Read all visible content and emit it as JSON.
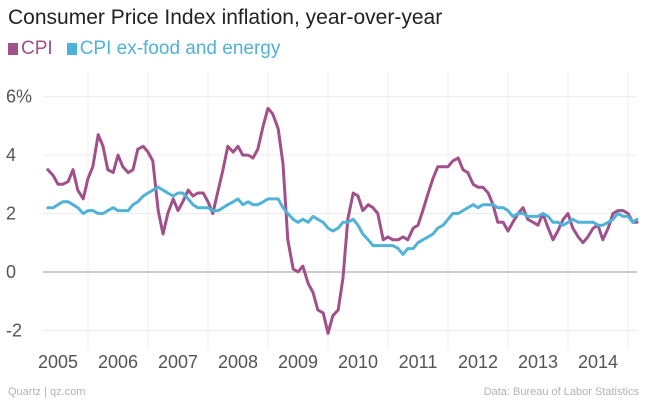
{
  "chart_data": {
    "type": "line",
    "title": "Consumer Price Index inflation, year-over-year",
    "xlabel": "",
    "ylabel": "",
    "x_range": [
      2004.75,
      2014.65
    ],
    "ylim": [
      -2.5,
      6.5
    ],
    "y_ticks": [
      "6%",
      "4",
      "2",
      "0",
      "-2"
    ],
    "y_tick_values": [
      6,
      4,
      2,
      0,
      -2
    ],
    "x_ticks": [
      "2005",
      "2006",
      "2007",
      "2008",
      "2009",
      "2010",
      "2011",
      "2012",
      "2013",
      "2014"
    ],
    "x_tick_values": [
      2005,
      2006,
      2007,
      2008,
      2009,
      2010,
      2011,
      2012,
      2013,
      2014
    ],
    "legend": "top-left",
    "grid": true,
    "series": [
      {
        "name": "CPI",
        "color": "#a0508a",
        "points": [
          [
            2004.83,
            3.5
          ],
          [
            2004.92,
            3.3
          ],
          [
            2005.0,
            3.0
          ],
          [
            2005.08,
            3.0
          ],
          [
            2005.17,
            3.1
          ],
          [
            2005.25,
            3.5
          ],
          [
            2005.33,
            2.8
          ],
          [
            2005.42,
            2.5
          ],
          [
            2005.5,
            3.2
          ],
          [
            2005.58,
            3.6
          ],
          [
            2005.67,
            4.7
          ],
          [
            2005.75,
            4.3
          ],
          [
            2005.83,
            3.5
          ],
          [
            2005.92,
            3.4
          ],
          [
            2006.0,
            4.0
          ],
          [
            2006.08,
            3.6
          ],
          [
            2006.17,
            3.4
          ],
          [
            2006.25,
            3.5
          ],
          [
            2006.33,
            4.2
          ],
          [
            2006.42,
            4.3
          ],
          [
            2006.5,
            4.1
          ],
          [
            2006.58,
            3.8
          ],
          [
            2006.67,
            2.1
          ],
          [
            2006.75,
            1.3
          ],
          [
            2006.83,
            2.0
          ],
          [
            2006.92,
            2.5
          ],
          [
            2007.0,
            2.1
          ],
          [
            2007.08,
            2.4
          ],
          [
            2007.17,
            2.8
          ],
          [
            2007.25,
            2.6
          ],
          [
            2007.33,
            2.7
          ],
          [
            2007.42,
            2.7
          ],
          [
            2007.5,
            2.4
          ],
          [
            2007.58,
            2.0
          ],
          [
            2007.67,
            2.8
          ],
          [
            2007.75,
            3.5
          ],
          [
            2007.83,
            4.3
          ],
          [
            2007.92,
            4.1
          ],
          [
            2008.0,
            4.3
          ],
          [
            2008.08,
            4.0
          ],
          [
            2008.17,
            4.0
          ],
          [
            2008.25,
            3.9
          ],
          [
            2008.33,
            4.2
          ],
          [
            2008.42,
            5.0
          ],
          [
            2008.5,
            5.6
          ],
          [
            2008.58,
            5.4
          ],
          [
            2008.67,
            4.9
          ],
          [
            2008.75,
            3.7
          ],
          [
            2008.83,
            1.1
          ],
          [
            2008.92,
            0.1
          ],
          [
            2009.0,
            0.0
          ],
          [
            2009.08,
            0.2
          ],
          [
            2009.17,
            -0.4
          ],
          [
            2009.25,
            -0.7
          ],
          [
            2009.33,
            -1.3
          ],
          [
            2009.42,
            -1.4
          ],
          [
            2009.5,
            -2.1
          ],
          [
            2009.58,
            -1.5
          ],
          [
            2009.67,
            -1.3
          ],
          [
            2009.75,
            -0.2
          ],
          [
            2009.83,
            1.8
          ],
          [
            2009.92,
            2.7
          ],
          [
            2010.0,
            2.6
          ],
          [
            2010.08,
            2.1
          ],
          [
            2010.17,
            2.3
          ],
          [
            2010.25,
            2.2
          ],
          [
            2010.33,
            2.0
          ],
          [
            2010.42,
            1.1
          ],
          [
            2010.5,
            1.2
          ],
          [
            2010.58,
            1.1
          ],
          [
            2010.67,
            1.1
          ],
          [
            2010.75,
            1.2
          ],
          [
            2010.83,
            1.1
          ],
          [
            2010.92,
            1.5
          ],
          [
            2011.0,
            1.6
          ],
          [
            2011.08,
            2.1
          ],
          [
            2011.17,
            2.7
          ],
          [
            2011.25,
            3.2
          ],
          [
            2011.33,
            3.6
          ],
          [
            2011.42,
            3.6
          ],
          [
            2011.5,
            3.6
          ],
          [
            2011.58,
            3.8
          ],
          [
            2011.67,
            3.9
          ],
          [
            2011.75,
            3.5
          ],
          [
            2011.83,
            3.4
          ],
          [
            2011.92,
            3.0
          ],
          [
            2012.0,
            2.9
          ],
          [
            2012.08,
            2.9
          ],
          [
            2012.17,
            2.7
          ],
          [
            2012.25,
            2.3
          ],
          [
            2012.33,
            1.7
          ],
          [
            2012.42,
            1.7
          ],
          [
            2012.5,
            1.4
          ],
          [
            2012.58,
            1.7
          ],
          [
            2012.67,
            2.0
          ],
          [
            2012.75,
            2.2
          ],
          [
            2012.83,
            1.8
          ],
          [
            2012.92,
            1.7
          ],
          [
            2013.0,
            1.6
          ],
          [
            2013.08,
            2.0
          ],
          [
            2013.17,
            1.5
          ],
          [
            2013.25,
            1.1
          ],
          [
            2013.33,
            1.4
          ],
          [
            2013.42,
            1.8
          ],
          [
            2013.5,
            2.0
          ],
          [
            2013.58,
            1.5
          ],
          [
            2013.67,
            1.2
          ],
          [
            2013.75,
            1.0
          ],
          [
            2013.83,
            1.2
          ],
          [
            2013.92,
            1.5
          ],
          [
            2014.0,
            1.6
          ],
          [
            2014.08,
            1.1
          ],
          [
            2014.17,
            1.5
          ],
          [
            2014.25,
            2.0
          ],
          [
            2014.33,
            2.1
          ],
          [
            2014.42,
            2.1
          ],
          [
            2014.5,
            2.0
          ],
          [
            2014.58,
            1.7
          ],
          [
            2014.65,
            1.7
          ]
        ]
      },
      {
        "name": "CPI ex-food and energy",
        "color": "#51b2d8",
        "points": [
          [
            2004.83,
            2.2
          ],
          [
            2004.92,
            2.2
          ],
          [
            2005.0,
            2.3
          ],
          [
            2005.08,
            2.4
          ],
          [
            2005.17,
            2.4
          ],
          [
            2005.25,
            2.3
          ],
          [
            2005.33,
            2.2
          ],
          [
            2005.42,
            2.0
          ],
          [
            2005.5,
            2.1
          ],
          [
            2005.58,
            2.1
          ],
          [
            2005.67,
            2.0
          ],
          [
            2005.75,
            2.0
          ],
          [
            2005.83,
            2.1
          ],
          [
            2005.92,
            2.2
          ],
          [
            2006.0,
            2.1
          ],
          [
            2006.08,
            2.1
          ],
          [
            2006.17,
            2.1
          ],
          [
            2006.25,
            2.3
          ],
          [
            2006.33,
            2.4
          ],
          [
            2006.42,
            2.6
          ],
          [
            2006.5,
            2.7
          ],
          [
            2006.58,
            2.8
          ],
          [
            2006.67,
            2.9
          ],
          [
            2006.75,
            2.8
          ],
          [
            2006.83,
            2.7
          ],
          [
            2006.92,
            2.6
          ],
          [
            2007.0,
            2.7
          ],
          [
            2007.08,
            2.7
          ],
          [
            2007.17,
            2.5
          ],
          [
            2007.25,
            2.3
          ],
          [
            2007.33,
            2.2
          ],
          [
            2007.42,
            2.2
          ],
          [
            2007.5,
            2.2
          ],
          [
            2007.58,
            2.1
          ],
          [
            2007.67,
            2.1
          ],
          [
            2007.75,
            2.2
          ],
          [
            2007.83,
            2.3
          ],
          [
            2007.92,
            2.4
          ],
          [
            2008.0,
            2.5
          ],
          [
            2008.08,
            2.3
          ],
          [
            2008.17,
            2.4
          ],
          [
            2008.25,
            2.3
          ],
          [
            2008.33,
            2.3
          ],
          [
            2008.42,
            2.4
          ],
          [
            2008.5,
            2.5
          ],
          [
            2008.58,
            2.5
          ],
          [
            2008.67,
            2.5
          ],
          [
            2008.75,
            2.2
          ],
          [
            2008.83,
            2.0
          ],
          [
            2008.92,
            1.8
          ],
          [
            2009.0,
            1.7
          ],
          [
            2009.08,
            1.8
          ],
          [
            2009.17,
            1.7
          ],
          [
            2009.25,
            1.9
          ],
          [
            2009.33,
            1.8
          ],
          [
            2009.42,
            1.7
          ],
          [
            2009.5,
            1.5
          ],
          [
            2009.58,
            1.4
          ],
          [
            2009.67,
            1.5
          ],
          [
            2009.75,
            1.7
          ],
          [
            2009.83,
            1.7
          ],
          [
            2009.92,
            1.8
          ],
          [
            2010.0,
            1.6
          ],
          [
            2010.08,
            1.3
          ],
          [
            2010.17,
            1.1
          ],
          [
            2010.25,
            0.9
          ],
          [
            2010.33,
            0.9
          ],
          [
            2010.42,
            0.9
          ],
          [
            2010.5,
            0.9
          ],
          [
            2010.58,
            0.9
          ],
          [
            2010.67,
            0.8
          ],
          [
            2010.75,
            0.6
          ],
          [
            2010.83,
            0.8
          ],
          [
            2010.92,
            0.8
          ],
          [
            2011.0,
            1.0
          ],
          [
            2011.08,
            1.1
          ],
          [
            2011.17,
            1.2
          ],
          [
            2011.25,
            1.3
          ],
          [
            2011.33,
            1.5
          ],
          [
            2011.42,
            1.6
          ],
          [
            2011.5,
            1.8
          ],
          [
            2011.58,
            2.0
          ],
          [
            2011.67,
            2.0
          ],
          [
            2011.75,
            2.1
          ],
          [
            2011.83,
            2.2
          ],
          [
            2011.92,
            2.3
          ],
          [
            2012.0,
            2.2
          ],
          [
            2012.08,
            2.3
          ],
          [
            2012.17,
            2.3
          ],
          [
            2012.25,
            2.3
          ],
          [
            2012.33,
            2.2
          ],
          [
            2012.42,
            2.2
          ],
          [
            2012.5,
            2.1
          ],
          [
            2012.58,
            1.9
          ],
          [
            2012.67,
            2.0
          ],
          [
            2012.75,
            2.0
          ],
          [
            2012.83,
            1.9
          ],
          [
            2012.92,
            1.9
          ],
          [
            2013.0,
            1.9
          ],
          [
            2013.08,
            2.0
          ],
          [
            2013.17,
            1.9
          ],
          [
            2013.25,
            1.7
          ],
          [
            2013.33,
            1.7
          ],
          [
            2013.42,
            1.6
          ],
          [
            2013.5,
            1.7
          ],
          [
            2013.58,
            1.8
          ],
          [
            2013.67,
            1.7
          ],
          [
            2013.75,
            1.7
          ],
          [
            2013.83,
            1.7
          ],
          [
            2013.92,
            1.7
          ],
          [
            2014.0,
            1.6
          ],
          [
            2014.08,
            1.6
          ],
          [
            2014.17,
            1.7
          ],
          [
            2014.25,
            1.8
          ],
          [
            2014.33,
            2.0
          ],
          [
            2014.42,
            1.9
          ],
          [
            2014.5,
            1.9
          ],
          [
            2014.58,
            1.7
          ],
          [
            2014.65,
            1.8
          ]
        ]
      }
    ]
  },
  "footer": {
    "source_left": "Quartz | qz.com",
    "source_right": "Data: Bureau of Labor Statistics"
  }
}
